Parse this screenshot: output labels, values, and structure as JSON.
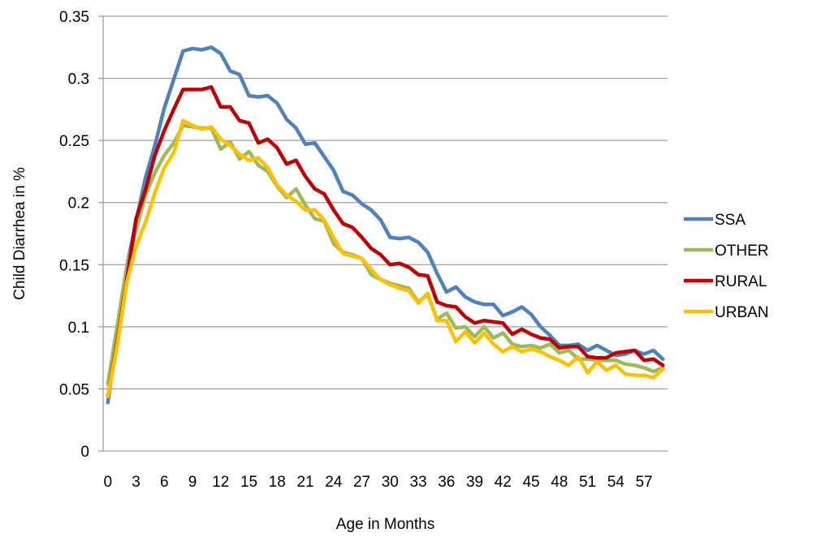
{
  "chart_data": {
    "type": "line",
    "xlabel": "Age in Months",
    "ylabel": "Child Diarrhea in %",
    "ylim": [
      0,
      0.35
    ],
    "yticks": [
      "0",
      "0.05",
      "0.1",
      "0.15",
      "0.2",
      "0.25",
      "0.3",
      "0.35"
    ],
    "xticks": [
      "0",
      "3",
      "6",
      "9",
      "12",
      "15",
      "18",
      "21",
      "24",
      "27",
      "30",
      "33",
      "36",
      "39",
      "42",
      "45",
      "48",
      "51",
      "54",
      "57"
    ],
    "x_range": [
      0,
      59
    ],
    "grid": true,
    "legend_position": "right",
    "series": [
      {
        "name": "SSA",
        "color": "#4F81BD",
        "values": [
          0.039,
          0.095,
          0.148,
          0.185,
          0.22,
          0.246,
          0.276,
          0.299,
          0.322,
          0.324,
          0.323,
          0.325,
          0.32,
          0.306,
          0.303,
          0.286,
          0.285,
          0.286,
          0.28,
          0.267,
          0.26,
          0.247,
          0.248,
          0.237,
          0.226,
          0.209,
          0.206,
          0.199,
          0.194,
          0.186,
          0.172,
          0.171,
          0.172,
          0.168,
          0.16,
          0.143,
          0.128,
          0.132,
          0.124,
          0.12,
          0.118,
          0.118,
          0.109,
          0.112,
          0.116,
          0.11,
          0.1,
          0.093,
          0.085,
          0.085,
          0.086,
          0.081,
          0.085,
          0.081,
          0.077,
          0.078,
          0.081,
          0.078,
          0.081,
          0.074
        ]
      },
      {
        "name": "OTHER",
        "color": "#9BBB59",
        "values": [
          0.054,
          0.101,
          0.148,
          0.178,
          0.206,
          0.224,
          0.238,
          0.248,
          0.262,
          0.261,
          0.26,
          0.26,
          0.243,
          0.249,
          0.235,
          0.241,
          0.23,
          0.225,
          0.213,
          0.204,
          0.211,
          0.198,
          0.187,
          0.185,
          0.167,
          0.16,
          0.158,
          0.155,
          0.142,
          0.138,
          0.135,
          0.133,
          0.131,
          0.12,
          0.126,
          0.106,
          0.111,
          0.099,
          0.1,
          0.092,
          0.1,
          0.091,
          0.095,
          0.086,
          0.084,
          0.085,
          0.083,
          0.086,
          0.079,
          0.081,
          0.074,
          0.074,
          0.073,
          0.073,
          0.073,
          0.07,
          0.069,
          0.067,
          0.064,
          0.067
        ]
      },
      {
        "name": "RURAL",
        "color": "#C00000",
        "values": [
          0.044,
          0.088,
          0.137,
          0.187,
          0.21,
          0.238,
          0.258,
          0.275,
          0.291,
          0.291,
          0.291,
          0.293,
          0.277,
          0.277,
          0.266,
          0.264,
          0.248,
          0.251,
          0.244,
          0.231,
          0.234,
          0.221,
          0.211,
          0.207,
          0.194,
          0.183,
          0.18,
          0.172,
          0.163,
          0.158,
          0.15,
          0.151,
          0.148,
          0.142,
          0.141,
          0.12,
          0.117,
          0.116,
          0.108,
          0.103,
          0.105,
          0.104,
          0.103,
          0.094,
          0.098,
          0.094,
          0.091,
          0.09,
          0.083,
          0.084,
          0.084,
          0.076,
          0.075,
          0.075,
          0.079,
          0.08,
          0.081,
          0.073,
          0.074,
          0.069
        ]
      },
      {
        "name": "URBAN",
        "color": "#FFC000",
        "values": [
          0.044,
          0.085,
          0.135,
          0.165,
          0.184,
          0.208,
          0.228,
          0.24,
          0.266,
          0.262,
          0.259,
          0.261,
          0.251,
          0.246,
          0.239,
          0.234,
          0.236,
          0.228,
          0.214,
          0.206,
          0.201,
          0.194,
          0.194,
          0.186,
          0.172,
          0.159,
          0.157,
          0.155,
          0.146,
          0.138,
          0.134,
          0.131,
          0.129,
          0.119,
          0.127,
          0.105,
          0.105,
          0.088,
          0.096,
          0.087,
          0.095,
          0.086,
          0.08,
          0.084,
          0.08,
          0.082,
          0.08,
          0.076,
          0.073,
          0.069,
          0.076,
          0.063,
          0.072,
          0.065,
          0.069,
          0.062,
          0.061,
          0.061,
          0.059,
          0.066
        ]
      }
    ]
  }
}
